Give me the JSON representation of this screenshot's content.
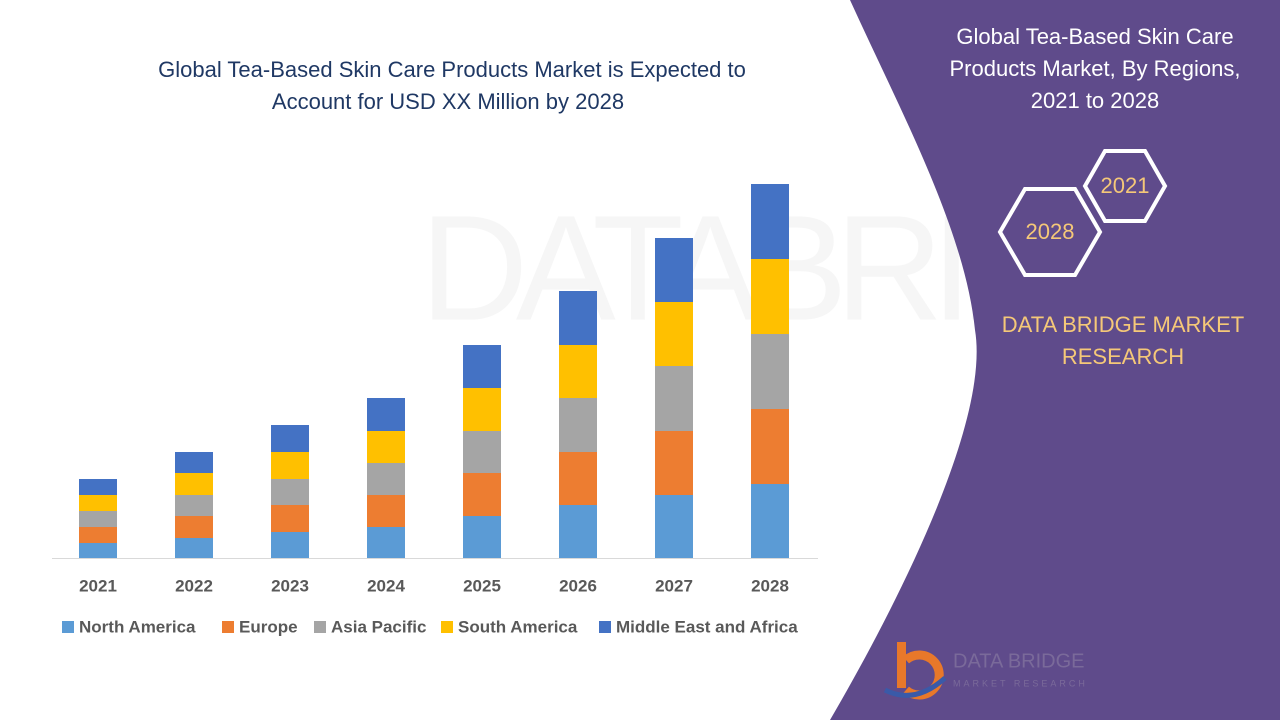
{
  "chart_data": {
    "type": "stacked-bar",
    "title": [
      "Global Tea-Based Skin Care Products Market is Expected to",
      "Account for USD XX Million by 2028"
    ],
    "categories": [
      "2021",
      "2022",
      "2023",
      "2024",
      "2025",
      "2026",
      "2027",
      "2028"
    ],
    "series": [
      {
        "name": "North America",
        "color": "#5b9bd5",
        "values": [
          15,
          20,
          26,
          31,
          42,
          53,
          63,
          74
        ]
      },
      {
        "name": "Europe",
        "color": "#ed7d31",
        "values": [
          16,
          22,
          27,
          32,
          43,
          53,
          64,
          75
        ]
      },
      {
        "name": "Asia Pacific",
        "color": "#a5a5a5",
        "values": [
          16,
          21,
          26,
          32,
          42,
          54,
          65,
          75
        ]
      },
      {
        "name": "South America",
        "color": "#ffc000",
        "values": [
          16,
          22,
          27,
          32,
          43,
          53,
          64,
          75
        ]
      },
      {
        "name": "Middle East and Africa",
        "color": "#4472c4",
        "values": [
          16,
          21,
          27,
          33,
          43,
          54,
          64,
          75
        ]
      }
    ],
    "ylim": [
      0,
      400
    ]
  },
  "panel": {
    "title": [
      "Global Tea-Based Skin Care",
      "Products Market, By Regions,",
      "2021 to 2028"
    ],
    "hexagons": [
      "2021",
      "2028"
    ],
    "brand": [
      "DATA BRIDGE MARKET",
      "RESEARCH"
    ],
    "logo": [
      "DATA BRIDGE",
      "MARKET RESEARCH"
    ]
  }
}
